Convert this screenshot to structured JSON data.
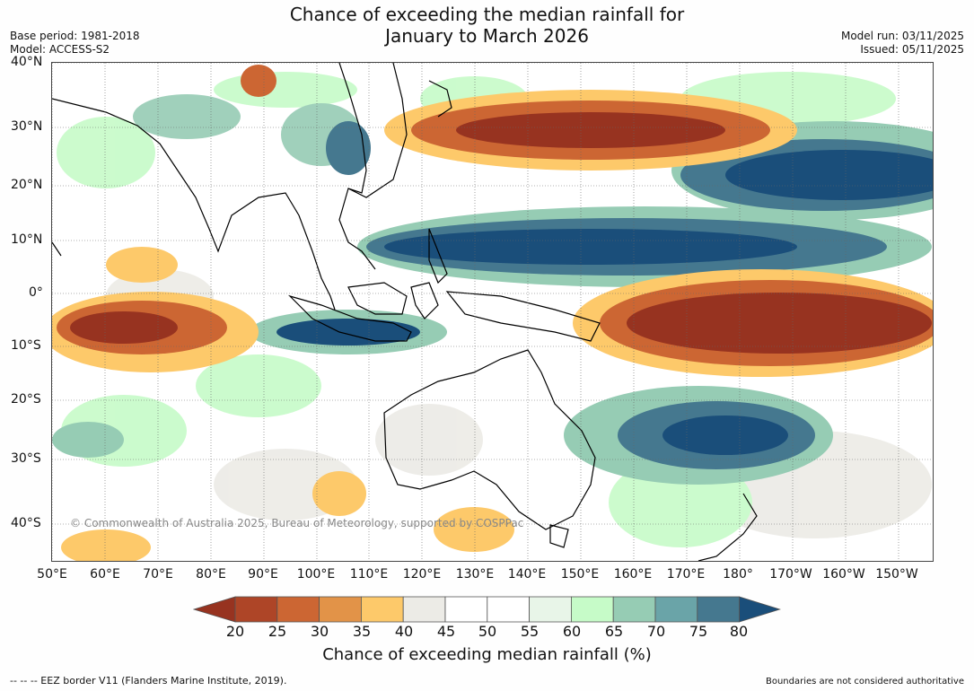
{
  "title": {
    "line1": "Chance of exceeding the median rainfall for",
    "line2": "January to March 2026"
  },
  "meta_left": {
    "base_period": "Base period: 1981-2018",
    "model": "Model: ACCESS-S2"
  },
  "meta_right": {
    "model_run": "Model run: 03/11/2025",
    "issued": "Issued: 05/11/2025"
  },
  "map": {
    "copyright": "© Commonwealth of Australia 2025, Bureau of Meteorology, supported by COSPPac",
    "lat_labels": [
      "40°N",
      "30°N",
      "20°N",
      "10°N",
      "0°",
      "10°S",
      "20°S",
      "30°S",
      "40°S"
    ],
    "lon_labels": [
      "50°E",
      "60°E",
      "70°E",
      "80°E",
      "90°E",
      "100°E",
      "110°E",
      "120°E",
      "130°E",
      "140°E",
      "150°E",
      "160°E",
      "170°E",
      "180°",
      "170°W",
      "160°W",
      "150°W"
    ]
  },
  "colorbar": {
    "title": "Chance of exceeding median rainfall (%)",
    "ticks": [
      "20",
      "25",
      "30",
      "35",
      "40",
      "45",
      "50",
      "55",
      "60",
      "65",
      "70",
      "75",
      "80"
    ],
    "colors": [
      "#973320",
      "#ae4527",
      "#cc6633",
      "#e29348",
      "#fdc96a",
      "#ecebe6",
      "#ffffff",
      "#ffffff",
      "#e8f5e8",
      "#c6fbc8",
      "#96ccb4",
      "#6aa4a8",
      "#45788f",
      "#1a4e7a"
    ]
  },
  "footer": {
    "eez": "--  --  -- EEZ border V11 (Flanders Marine Institute, 2019).",
    "disclaimer": "Boundaries are not considered authoritative"
  }
}
